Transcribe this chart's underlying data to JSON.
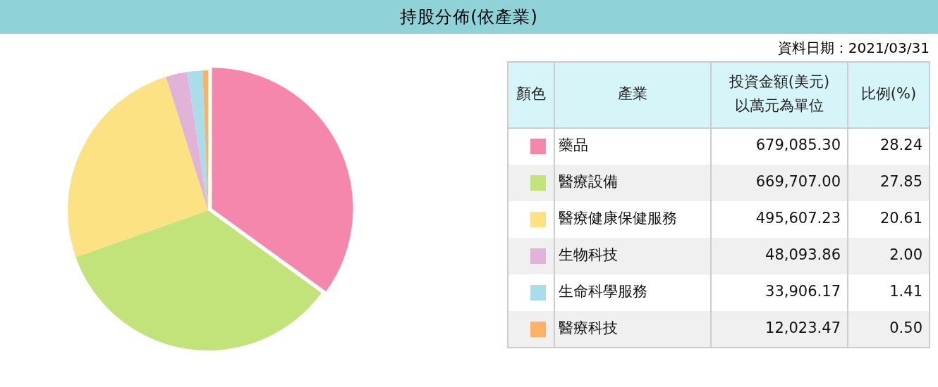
{
  "chart_data": {
    "type": "pie",
    "title": "持股分佈(依產業)",
    "xlabel": "產業",
    "ylabel": "投資金額(美元)\n以萬元為單位",
    "legend_title": "顏色",
    "annotations": [
      "資料日期：2021/03/31",
      "比例(%)",
      {
        "text": "28.24",
        "x": "藥品"
      },
      {
        "text": "27.85",
        "x": "醫療設備"
      },
      {
        "text": "20.61",
        "x": "醫療健康保健服務"
      },
      {
        "text": "2.00",
        "x": "生物科技"
      },
      {
        "text": "1.41",
        "x": "生命科學服務"
      },
      {
        "text": "0.50",
        "x": "醫療科技"
      }
    ],
    "categories": [
      "藥品",
      "醫療設備",
      "醫療健康保健服務",
      "生物科技",
      "生命科學服務",
      "醫療科技"
    ],
    "colors": [
      "#f587ad",
      "#c2e37a",
      "#fce283",
      "#e1b3d8",
      "#a8dde9",
      "#fdb165"
    ],
    "values": [
      679085.3,
      669707.0,
      495607.23,
      48093.86,
      33906.17,
      12023.47
    ],
    "value_labels": [
      "679,085.30",
      "669,707.00",
      "495,607.23",
      "48,093.86",
      "33,906.17",
      "12,023.47"
    ],
    "legend": "right"
  }
}
